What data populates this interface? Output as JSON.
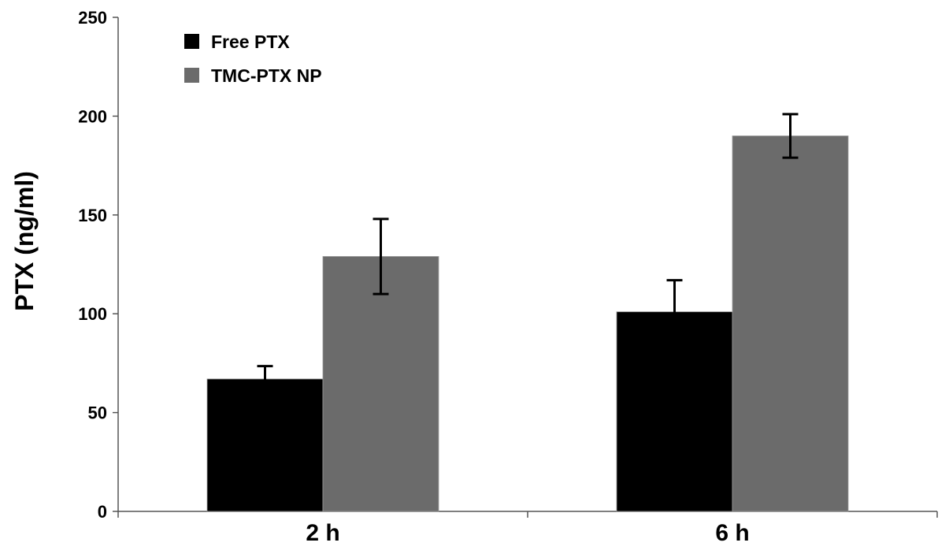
{
  "chart_data": {
    "type": "bar",
    "categories": [
      "2 h",
      "6 h"
    ],
    "series": [
      {
        "name": "Free PTX",
        "color": "#000000",
        "values": [
          67,
          101
        ],
        "errors": [
          6.5,
          16
        ]
      },
      {
        "name": "TMC-PTX NP",
        "color": "#6b6b6b",
        "values": [
          129,
          190
        ],
        "errors": [
          19,
          11
        ]
      }
    ],
    "ylabel": "PTX (ng/ml)",
    "xlabel": "",
    "ylim": [
      0,
      250
    ],
    "yticks": [
      0,
      50,
      100,
      150,
      200,
      250
    ],
    "grid": false,
    "legend_position": "top-left"
  }
}
